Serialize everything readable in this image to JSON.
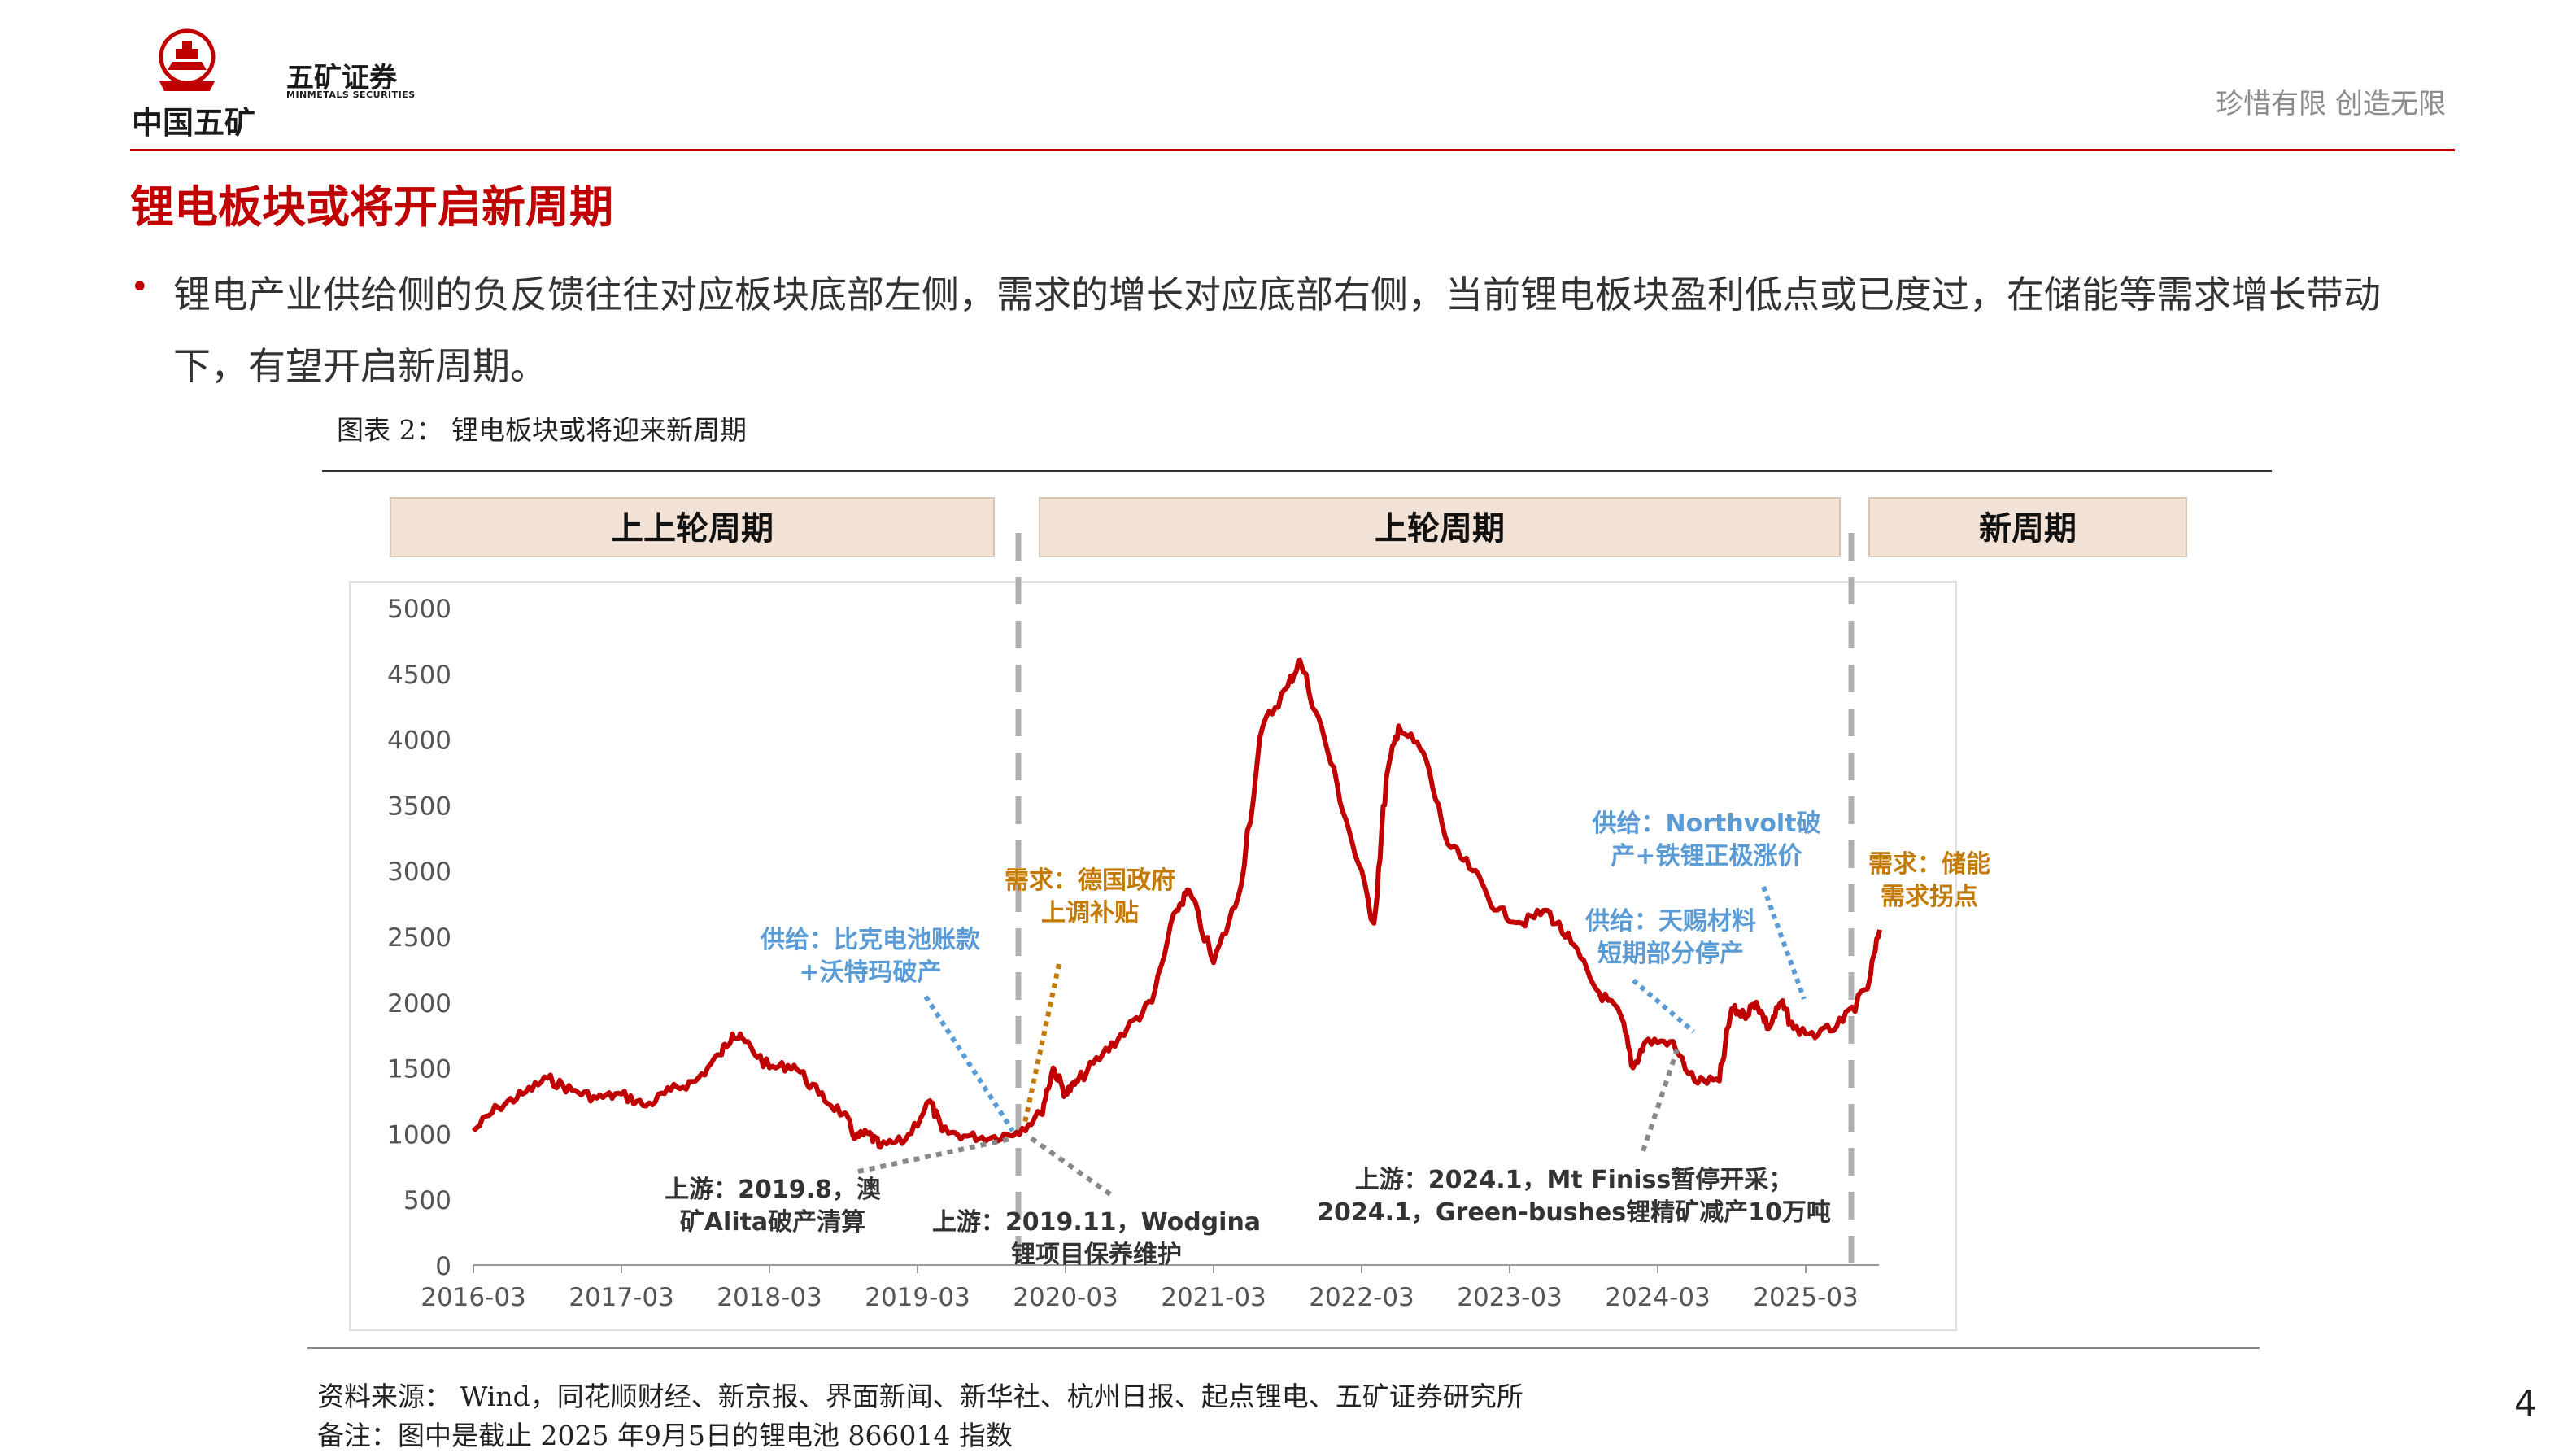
{
  "header": {
    "logo_cn": "中国五矿",
    "brand_cn": "五矿证券",
    "brand_en": "MINMETALS SECURITIES",
    "slogan": "珍惜有限  创造无限"
  },
  "title": "锂电板块或将开启新周期",
  "bullet": "锂电产业供给侧的负反馈往往对应板块底部左侧，需求的增长对应底部右侧，当前锂电板块盈利低点或已度过，在储能等需求增长带动下，有望开启新周期。",
  "figure_title": "图表 2：  锂电板块或将迎来新周期",
  "source": "资料来源：  Wind，同花顺财经、新京报、界面新闻、新华社、杭州日报、起点锂电、五矿证券研究所",
  "note": "备注：图中是截止 2025 年9月5日的锂电池 866014 指数",
  "page_number": "4",
  "colors": {
    "brand_red": "#c00000",
    "line": "#c00000",
    "supply_blue": "#5b9bd5",
    "demand_orange": "#c47a00",
    "upstream_gray": "#888888",
    "banner_fill": "#f2e1d5"
  },
  "chart_data": {
    "type": "line",
    "title": "",
    "xlabel": "",
    "ylabel": "",
    "ylim": [
      0,
      5000
    ],
    "xlim": [
      "2016-03",
      "2025-09"
    ],
    "y_ticks": [
      "0",
      "500",
      "1000",
      "1500",
      "2000",
      "2500",
      "3000",
      "3500",
      "4000",
      "4500",
      "5000"
    ],
    "x_ticks": [
      "2016-03",
      "2017-03",
      "2018-03",
      "2019-03",
      "2020-03",
      "2021-03",
      "2022-03",
      "2023-03",
      "2024-03",
      "2025-03"
    ],
    "grid": false,
    "series": [
      {
        "name": "",
        "points": [
          [
            "2016-03",
            1020
          ],
          [
            "2016-05",
            1200
          ],
          [
            "2016-07",
            1300
          ],
          [
            "2016-09",
            1420
          ],
          [
            "2016-11",
            1330
          ],
          [
            "2017-01",
            1270
          ],
          [
            "2017-03",
            1300
          ],
          [
            "2017-05",
            1210
          ],
          [
            "2017-07",
            1330
          ],
          [
            "2017-09",
            1400
          ],
          [
            "2017-11",
            1600
          ],
          [
            "2017-12",
            1760
          ],
          [
            "2018-01",
            1700
          ],
          [
            "2018-03",
            1500
          ],
          [
            "2018-05",
            1520
          ],
          [
            "2018-07",
            1300
          ],
          [
            "2018-09",
            1150
          ],
          [
            "2018-10",
            970
          ],
          [
            "2018-11",
            1000
          ],
          [
            "2018-12",
            900
          ],
          [
            "2019-02",
            950
          ],
          [
            "2019-04",
            1250
          ],
          [
            "2019-05",
            1020
          ],
          [
            "2019-07",
            980
          ],
          [
            "2019-09",
            970
          ],
          [
            "2019-11",
            1010
          ],
          [
            "2020-01",
            1150
          ],
          [
            "2020-02",
            1500
          ],
          [
            "2020-03",
            1300
          ],
          [
            "2020-04",
            1400
          ],
          [
            "2020-06",
            1600
          ],
          [
            "2020-08",
            1800
          ],
          [
            "2020-10",
            2000
          ],
          [
            "2020-12",
            2700
          ],
          [
            "2021-01",
            2850
          ],
          [
            "2021-03",
            2300
          ],
          [
            "2021-05",
            2800
          ],
          [
            "2021-07",
            4100
          ],
          [
            "2021-09",
            4400
          ],
          [
            "2021-10",
            4600
          ],
          [
            "2021-12",
            4000
          ],
          [
            "2022-02",
            3300
          ],
          [
            "2022-04",
            2600
          ],
          [
            "2022-05",
            3700
          ],
          [
            "2022-06",
            4100
          ],
          [
            "2022-08",
            3900
          ],
          [
            "2022-10",
            3200
          ],
          [
            "2022-12",
            3000
          ],
          [
            "2023-02",
            2700
          ],
          [
            "2023-04",
            2600
          ],
          [
            "2023-06",
            2700
          ],
          [
            "2023-08",
            2450
          ],
          [
            "2023-10",
            2100
          ],
          [
            "2023-12",
            1900
          ],
          [
            "2024-01",
            1500
          ],
          [
            "2024-02",
            1700
          ],
          [
            "2024-04",
            1700
          ],
          [
            "2024-06",
            1400
          ],
          [
            "2024-08",
            1400
          ],
          [
            "2024-09",
            1950
          ],
          [
            "2024-10",
            1900
          ],
          [
            "2024-11",
            2000
          ],
          [
            "2024-12",
            1800
          ],
          [
            "2025-01",
            2000
          ],
          [
            "2025-02",
            1800
          ],
          [
            "2025-04",
            1750
          ],
          [
            "2025-06",
            1850
          ],
          [
            "2025-08",
            2100
          ],
          [
            "2025-09",
            2550
          ]
        ]
      }
    ],
    "phases": [
      {
        "label": "上上轮周期",
        "from": "2016-03",
        "to": "2019-09"
      },
      {
        "label": "上轮周期",
        "from": "2019-09",
        "to": "2025-03"
      },
      {
        "label": "新周期",
        "from": "2025-03",
        "to": "2025-09"
      }
    ],
    "cycle_dividers": [
      "2019-09",
      "2025-03"
    ],
    "annotations": [
      {
        "kind": "supply",
        "lines": [
          "供给：比克电池账款",
          "+沃特玛破产"
        ],
        "target": [
          "2019-09",
          1000
        ]
      },
      {
        "kind": "demand",
        "lines": [
          "需求：德国政府",
          "上调补贴"
        ],
        "target": [
          "2019-11",
          1050
        ]
      },
      {
        "kind": "upstream",
        "lines": [
          "上游：2019.8，澳",
          "矿Alita破产清算"
        ],
        "target": [
          "2019-08",
          950
        ]
      },
      {
        "kind": "upstream",
        "lines": [
          "上游：2019.11，Wodgina",
          "锂项目保养维护"
        ],
        "target": [
          "2019-11",
          1000
        ]
      },
      {
        "kind": "supply",
        "lines": [
          "供给：天赐材料",
          "短期部分停产"
        ],
        "target": [
          "2024-05",
          1750
        ]
      },
      {
        "kind": "supply",
        "lines": [
          "供给：Northvolt破",
          "产+铁锂正极涨价"
        ],
        "target": [
          "2025-01",
          1950
        ]
      },
      {
        "kind": "upstream",
        "lines": [
          "上游：2024.1，Mt Finiss暂停开采；",
          "2024.1，Green-bushes锂精矿减产10万吨"
        ],
        "target": [
          "2024-01",
          1800
        ]
      },
      {
        "kind": "demand",
        "lines": [
          "需求：储能",
          "需求拐点"
        ],
        "target": [
          "2025-09",
          2550
        ]
      }
    ]
  }
}
